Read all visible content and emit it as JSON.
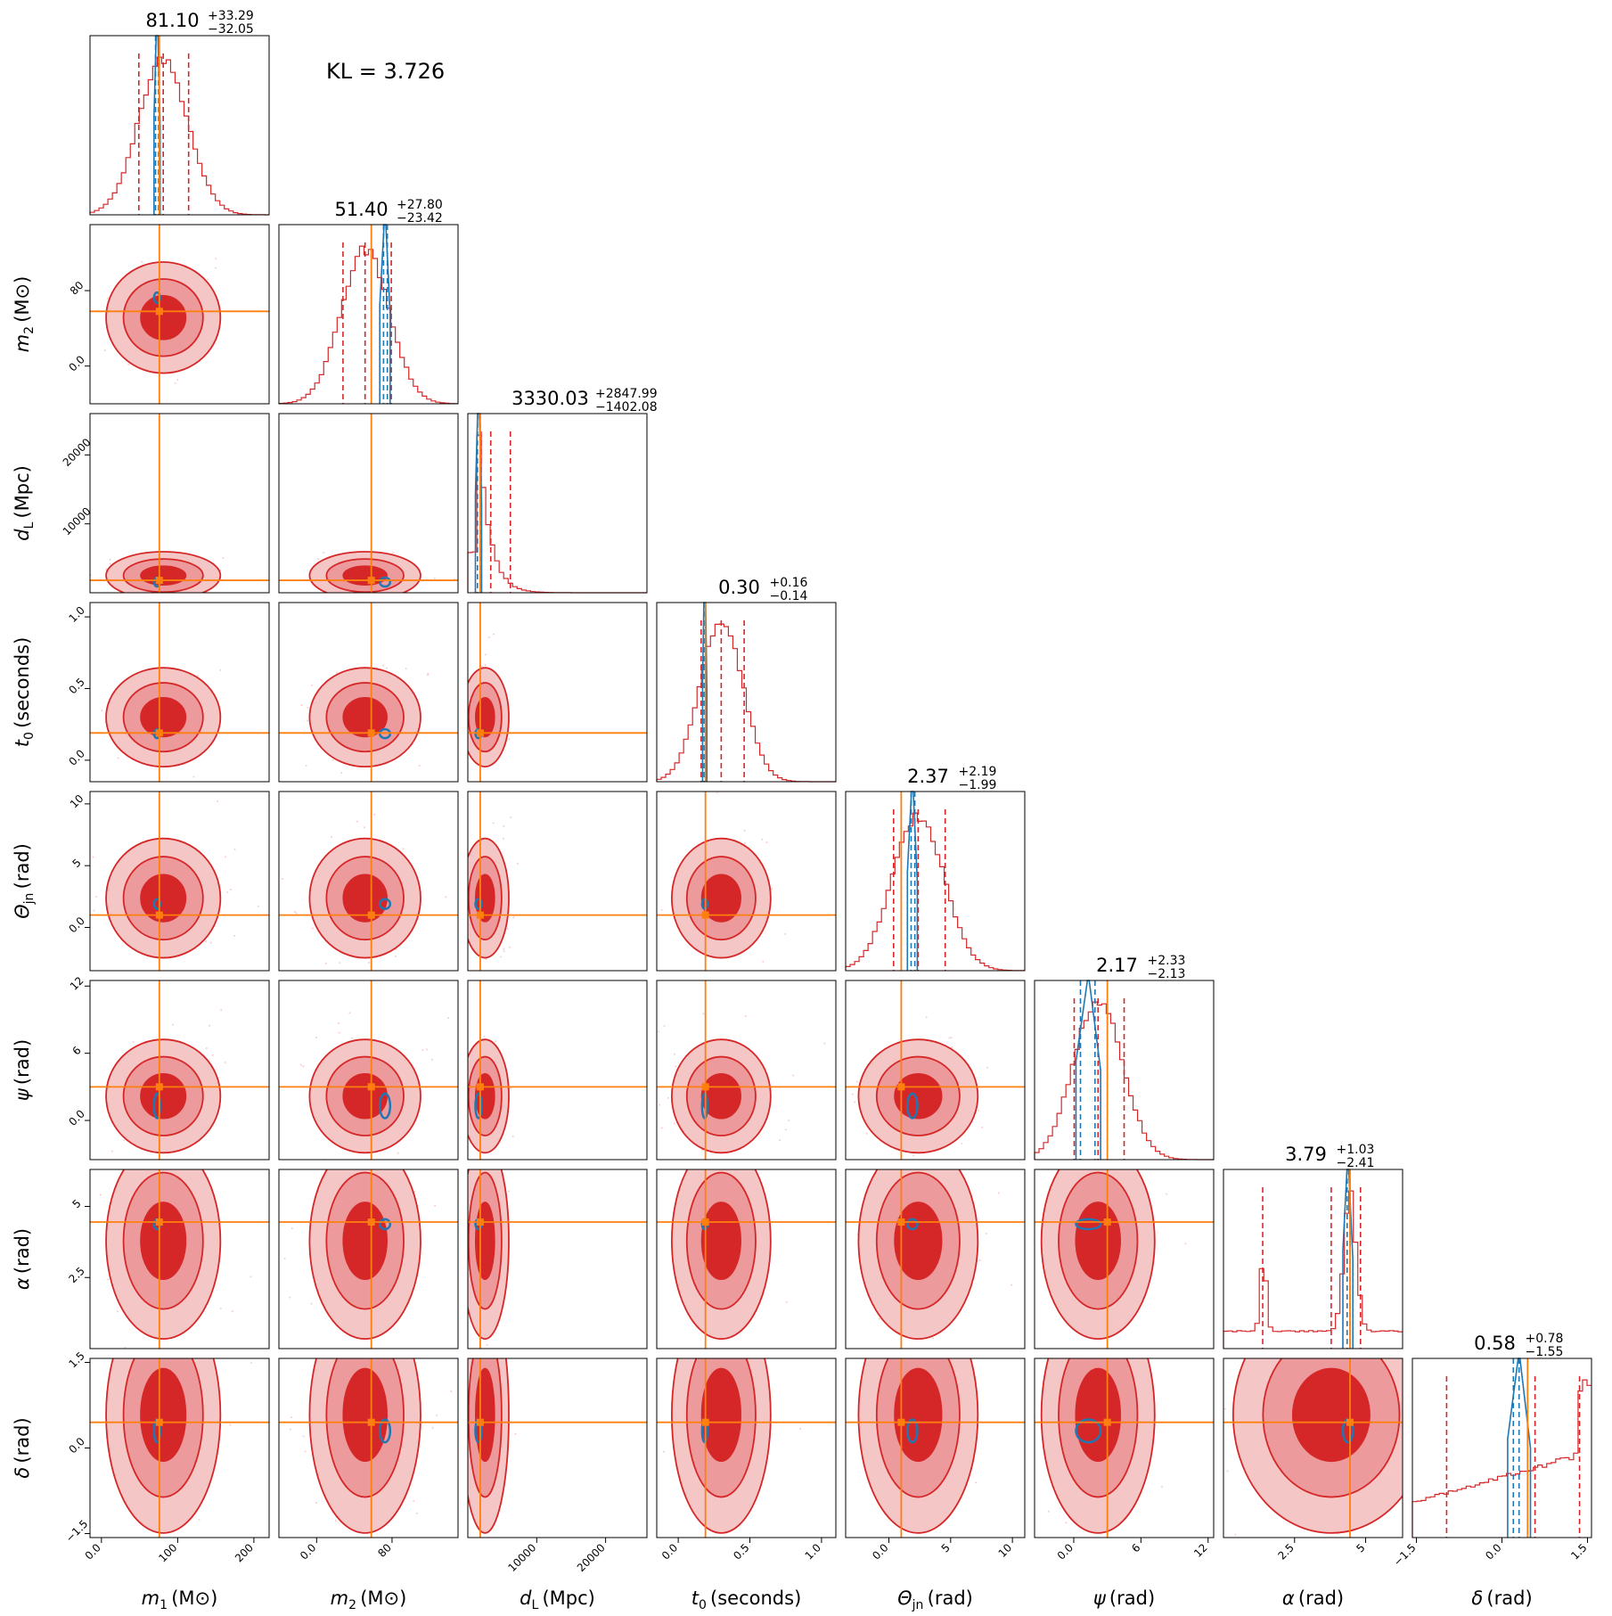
{
  "kl_label": "KL = 3.726",
  "colors": {
    "posterior": "#d62728",
    "reference": "#1f77b4",
    "truth": "#ff7f0e"
  },
  "chart_data": {
    "type": "corner",
    "parameters": [
      {
        "key": "m1",
        "label": "m_1 (M⊙)",
        "label_main": "m",
        "label_sub": "1",
        "label_unit": "(M⊙)",
        "range": [
          -15,
          220
        ],
        "ticks": [
          0,
          100,
          200
        ],
        "truth": 76,
        "median": "81.10",
        "plus": "+33.29",
        "minus": "−32.05",
        "mean": 81.1,
        "sd": 32.6,
        "q_lo": 49.05,
        "q_hi": 114.39,
        "ref": [
          69,
          71,
          75,
          77
        ]
      },
      {
        "key": "m2",
        "label": "m_2 (M⊙)",
        "label_main": "m",
        "label_sub": "2",
        "label_unit": "(M⊙)",
        "range": [
          -40,
          150
        ],
        "ticks": [
          0,
          80
        ],
        "truth": 58,
        "median": "51.40",
        "plus": "+27.80",
        "minus": "−23.42",
        "mean": 51.4,
        "sd": 25.6,
        "q_lo": 27.98,
        "q_hi": 79.2,
        "ref": [
          67,
          71,
          75,
          78
        ]
      },
      {
        "key": "dL",
        "label": "d_L (Mpc)",
        "label_main": "d",
        "label_sub": "L",
        "label_unit": "(Mpc)",
        "range": [
          0,
          26000
        ],
        "ticks": [
          10000,
          20000
        ],
        "truth": 1800,
        "median": "3330.03",
        "plus": "+2847.99",
        "minus": "−1402.08",
        "mean": 3330.03,
        "sd": 2100,
        "q_lo": 1927.95,
        "q_hi": 6178.02,
        "ref": [
          1100,
          1400,
          1800,
          2000
        ]
      },
      {
        "key": "t0",
        "label": "t_0 (seconds)",
        "label_main": "t",
        "label_sub": "0",
        "label_unit": "(seconds)",
        "range": [
          -0.15,
          1.1
        ],
        "ticks": [
          0.0,
          0.5,
          1.0
        ],
        "truth": 0.19,
        "median": "0.30",
        "plus": "+0.16",
        "minus": "−0.14",
        "mean": 0.3,
        "sd": 0.15,
        "q_lo": 0.16,
        "q_hi": 0.46,
        "ref": [
          0.17,
          0.18,
          0.19,
          0.2
        ]
      },
      {
        "key": "theta_jn",
        "label": "Θ_jn (rad)",
        "label_main": "Θ",
        "label_sub": "jn",
        "label_unit": "(rad)",
        "range": [
          -3.5,
          11
        ],
        "ticks": [
          0,
          5,
          10
        ],
        "truth": 1.0,
        "median": "2.37",
        "plus": "+2.19",
        "minus": "−1.99",
        "mean": 2.37,
        "sd": 2.1,
        "q_lo": 0.38,
        "q_hi": 4.56,
        "ref": [
          1.5,
          1.8,
          2.1,
          2.3
        ]
      },
      {
        "key": "psi",
        "label": "ψ (rad)",
        "label_main": "ψ",
        "label_sub": "",
        "label_unit": "(rad)",
        "range": [
          -3.5,
          12.5
        ],
        "ticks": [
          0,
          6,
          12
        ],
        "truth": 3.0,
        "median": "2.17",
        "plus": "+2.33",
        "minus": "−2.13",
        "mean": 2.17,
        "sd": 2.2,
        "q_lo": 0.04,
        "q_hi": 4.5,
        "ref": [
          0.2,
          0.6,
          1.9,
          2.4
        ]
      },
      {
        "key": "alpha",
        "label": "α (rad)",
        "label_main": "α",
        "label_sub": "",
        "label_unit": "(rad)",
        "range": [
          0,
          6.3
        ],
        "ticks": [
          2.5,
          5.0
        ],
        "truth": 4.45,
        "median": "3.79",
        "plus": "+1.03",
        "minus": "−2.41",
        "mean": 3.79,
        "sd": 1.5,
        "q_lo": 1.38,
        "q_hi": 4.82,
        "ref": [
          4.2,
          4.35,
          4.45,
          4.55
        ]
      },
      {
        "key": "delta",
        "label": "δ (rad)",
        "label_main": "δ",
        "label_sub": "",
        "label_unit": "(rad)",
        "range": [
          -1.57,
          1.57
        ],
        "ticks": [
          -1.5,
          0.0,
          1.5
        ],
        "truth": 0.45,
        "median": "0.58",
        "plus": "+0.78",
        "minus": "−1.55",
        "mean": 0.58,
        "sd": 0.9,
        "q_lo": -0.97,
        "q_hi": 1.36,
        "ref": [
          0.1,
          0.2,
          0.3,
          0.5
        ]
      }
    ]
  }
}
